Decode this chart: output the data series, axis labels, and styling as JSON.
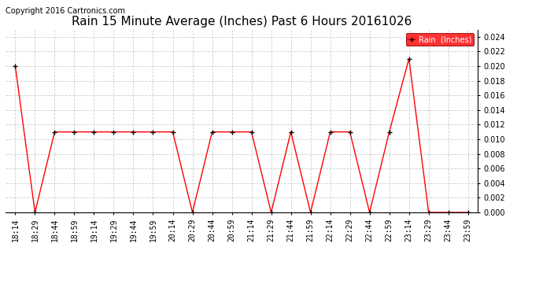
{
  "title": "Rain 15 Minute Average (Inches) Past 6 Hours 20161026",
  "copyright_text": "Copyright 2016 Cartronics.com",
  "legend_label": "Rain  (Inches)",
  "x_labels": [
    "18:14",
    "18:29",
    "18:44",
    "18:59",
    "19:14",
    "19:29",
    "19:44",
    "19:59",
    "20:14",
    "20:29",
    "20:44",
    "20:59",
    "21:14",
    "21:29",
    "21:44",
    "21:59",
    "22:14",
    "22:29",
    "22:44",
    "22:59",
    "23:14",
    "23:29",
    "23:44",
    "23:59"
  ],
  "y_values": [
    0.02,
    0.0,
    0.011,
    0.011,
    0.011,
    0.011,
    0.011,
    0.011,
    0.011,
    0.0,
    0.011,
    0.011,
    0.011,
    0.0,
    0.011,
    0.0,
    0.011,
    0.011,
    0.0,
    0.011,
    0.021,
    0.0,
    0.0,
    0.0
  ],
  "ylim": [
    0,
    0.025
  ],
  "yticks": [
    0.0,
    0.002,
    0.004,
    0.006,
    0.008,
    0.01,
    0.012,
    0.014,
    0.016,
    0.018,
    0.02,
    0.022,
    0.024
  ],
  "line_color": "red",
  "marker_color": "black",
  "marker": "+",
  "background_color": "white",
  "grid_color": "#cccccc",
  "title_fontsize": 11,
  "copyright_fontsize": 7,
  "tick_fontsize": 7,
  "legend_bg_color": "red",
  "legend_text_color": "white"
}
